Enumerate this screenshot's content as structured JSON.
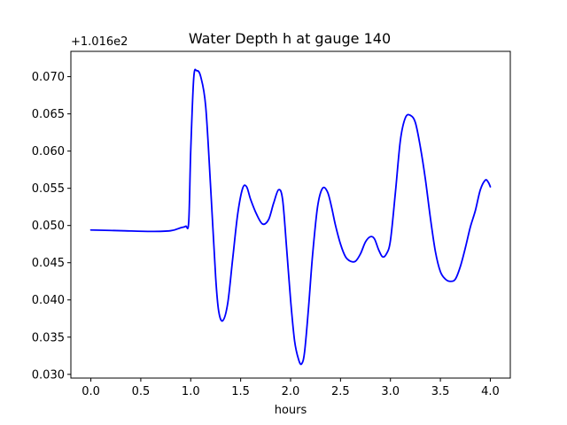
{
  "chart_data": {
    "type": "line",
    "title": "Water Depth h at gauge 140",
    "xlabel": "hours",
    "ylabel": "",
    "y_offset_label": "+1.016e2",
    "xlim": [
      -0.2,
      4.2
    ],
    "ylim": [
      0.0295,
      0.0734
    ],
    "x_ticks": [
      0.0,
      0.5,
      1.0,
      1.5,
      2.0,
      2.5,
      3.0,
      3.5,
      4.0
    ],
    "x_tick_labels": [
      "0.0",
      "0.5",
      "1.0",
      "1.5",
      "2.0",
      "2.5",
      "3.0",
      "3.5",
      "4.0"
    ],
    "y_ticks": [
      0.03,
      0.035,
      0.04,
      0.045,
      0.05,
      0.055,
      0.06,
      0.065,
      0.07
    ],
    "y_tick_labels": [
      "0.030",
      "0.035",
      "0.040",
      "0.045",
      "0.050",
      "0.055",
      "0.060",
      "0.065",
      "0.070"
    ],
    "grid": false,
    "legend": "none",
    "series": [
      {
        "color": "#0000ff",
        "x": [
          0.0,
          0.3,
          0.6,
          0.8,
          0.9,
          0.95,
          0.98,
          1.0,
          1.03,
          1.06,
          1.1,
          1.15,
          1.2,
          1.25,
          1.28,
          1.32,
          1.37,
          1.42,
          1.47,
          1.52,
          1.56,
          1.6,
          1.66,
          1.72,
          1.78,
          1.83,
          1.88,
          1.92,
          1.96,
          2.0,
          2.04,
          2.08,
          2.11,
          2.14,
          2.18,
          2.22,
          2.27,
          2.32,
          2.37,
          2.41,
          2.45,
          2.5,
          2.55,
          2.6,
          2.65,
          2.7,
          2.75,
          2.8,
          2.84,
          2.88,
          2.92,
          2.96,
          3.0,
          3.05,
          3.1,
          3.15,
          3.2,
          3.25,
          3.3,
          3.35,
          3.4,
          3.45,
          3.5,
          3.55,
          3.6,
          3.65,
          3.7,
          3.75,
          3.8,
          3.85,
          3.9,
          3.95,
          3.98,
          4.0
        ],
        "y": [
          0.0494,
          0.0493,
          0.0492,
          0.0493,
          0.0497,
          0.0499,
          0.0505,
          0.06,
          0.0698,
          0.0708,
          0.07,
          0.066,
          0.055,
          0.043,
          0.0385,
          0.0372,
          0.0395,
          0.0455,
          0.0515,
          0.055,
          0.0552,
          0.0535,
          0.0515,
          0.0502,
          0.0508,
          0.053,
          0.0548,
          0.0535,
          0.047,
          0.04,
          0.0345,
          0.032,
          0.0314,
          0.033,
          0.039,
          0.046,
          0.0525,
          0.055,
          0.0545,
          0.0525,
          0.05,
          0.0475,
          0.0458,
          0.0452,
          0.0452,
          0.0462,
          0.0478,
          0.0485,
          0.0482,
          0.0468,
          0.0458,
          0.0462,
          0.048,
          0.0545,
          0.0615,
          0.0645,
          0.0648,
          0.0638,
          0.0605,
          0.0562,
          0.051,
          0.0465,
          0.0438,
          0.0428,
          0.0425,
          0.0428,
          0.0445,
          0.047,
          0.0498,
          0.052,
          0.0548,
          0.0561,
          0.0558,
          0.0552
        ]
      }
    ]
  }
}
